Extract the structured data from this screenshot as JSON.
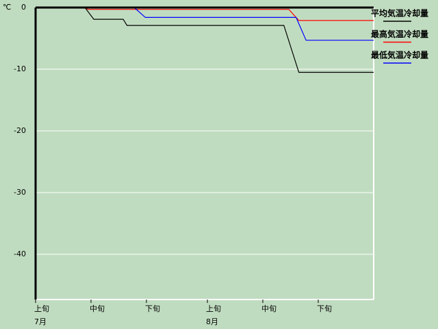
{
  "chart_data": {
    "type": "line",
    "y_unit": "℃",
    "xlim": [
      0,
      61
    ],
    "ylim": [
      -47,
      0
    ],
    "xticks": [
      {
        "value": 0,
        "label": "上旬"
      },
      {
        "value": 10,
        "label": "中旬"
      },
      {
        "value": 20,
        "label": "下旬"
      },
      {
        "value": 31,
        "label": "上旬"
      },
      {
        "value": 41,
        "label": "中旬"
      },
      {
        "value": 51,
        "label": "下旬"
      }
    ],
    "x_groups": [
      {
        "value": 0,
        "label": "7月"
      },
      {
        "value": 31,
        "label": "8月"
      }
    ],
    "yticks": [
      0,
      -10,
      -20,
      -30,
      -40
    ],
    "grid": true,
    "series": [
      {
        "name": "平均気温冷却量",
        "color": "#000000",
        "x": [
          0,
          8.9,
          10.5,
          15.8,
          16.5,
          44.8,
          47.5,
          61
        ],
        "values": [
          0,
          0,
          -1.9,
          -1.9,
          -2.9,
          -2.9,
          -10.5,
          -10.5
        ]
      },
      {
        "name": "最高気温冷却量",
        "color": "#ff0000",
        "x": [
          0,
          8.9,
          9.5,
          45.7,
          47.5,
          61
        ],
        "values": [
          0,
          0,
          -0.3,
          -0.3,
          -2.1,
          -2.1
        ]
      },
      {
        "name": "最低気温冷却量",
        "color": "#0000ff",
        "x": [
          0,
          17.8,
          19.8,
          47,
          48.8,
          61
        ],
        "values": [
          0,
          0,
          -1.6,
          -1.6,
          -5.3,
          -5.3
        ]
      }
    ]
  }
}
